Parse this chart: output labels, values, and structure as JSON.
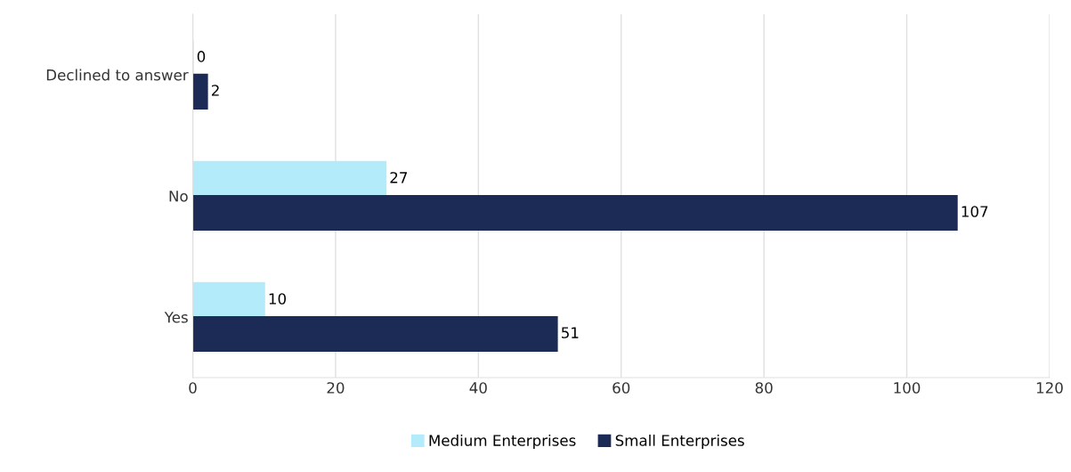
{
  "chart_data": {
    "type": "bar",
    "orientation": "horizontal",
    "categories": [
      "Declined to answer",
      "No",
      "Yes"
    ],
    "series": [
      {
        "name": "Medium Enterprises",
        "color": "#b3ebfa",
        "values": [
          0,
          27,
          10
        ]
      },
      {
        "name": "Small Enterprises",
        "color": "#1b2b55",
        "values": [
          2,
          107,
          51
        ]
      }
    ],
    "xlim": [
      0,
      120
    ],
    "xticks": [
      0,
      20,
      40,
      60,
      80,
      100,
      120
    ],
    "grid": "x",
    "legend": "bottom",
    "data_labels": true
  }
}
